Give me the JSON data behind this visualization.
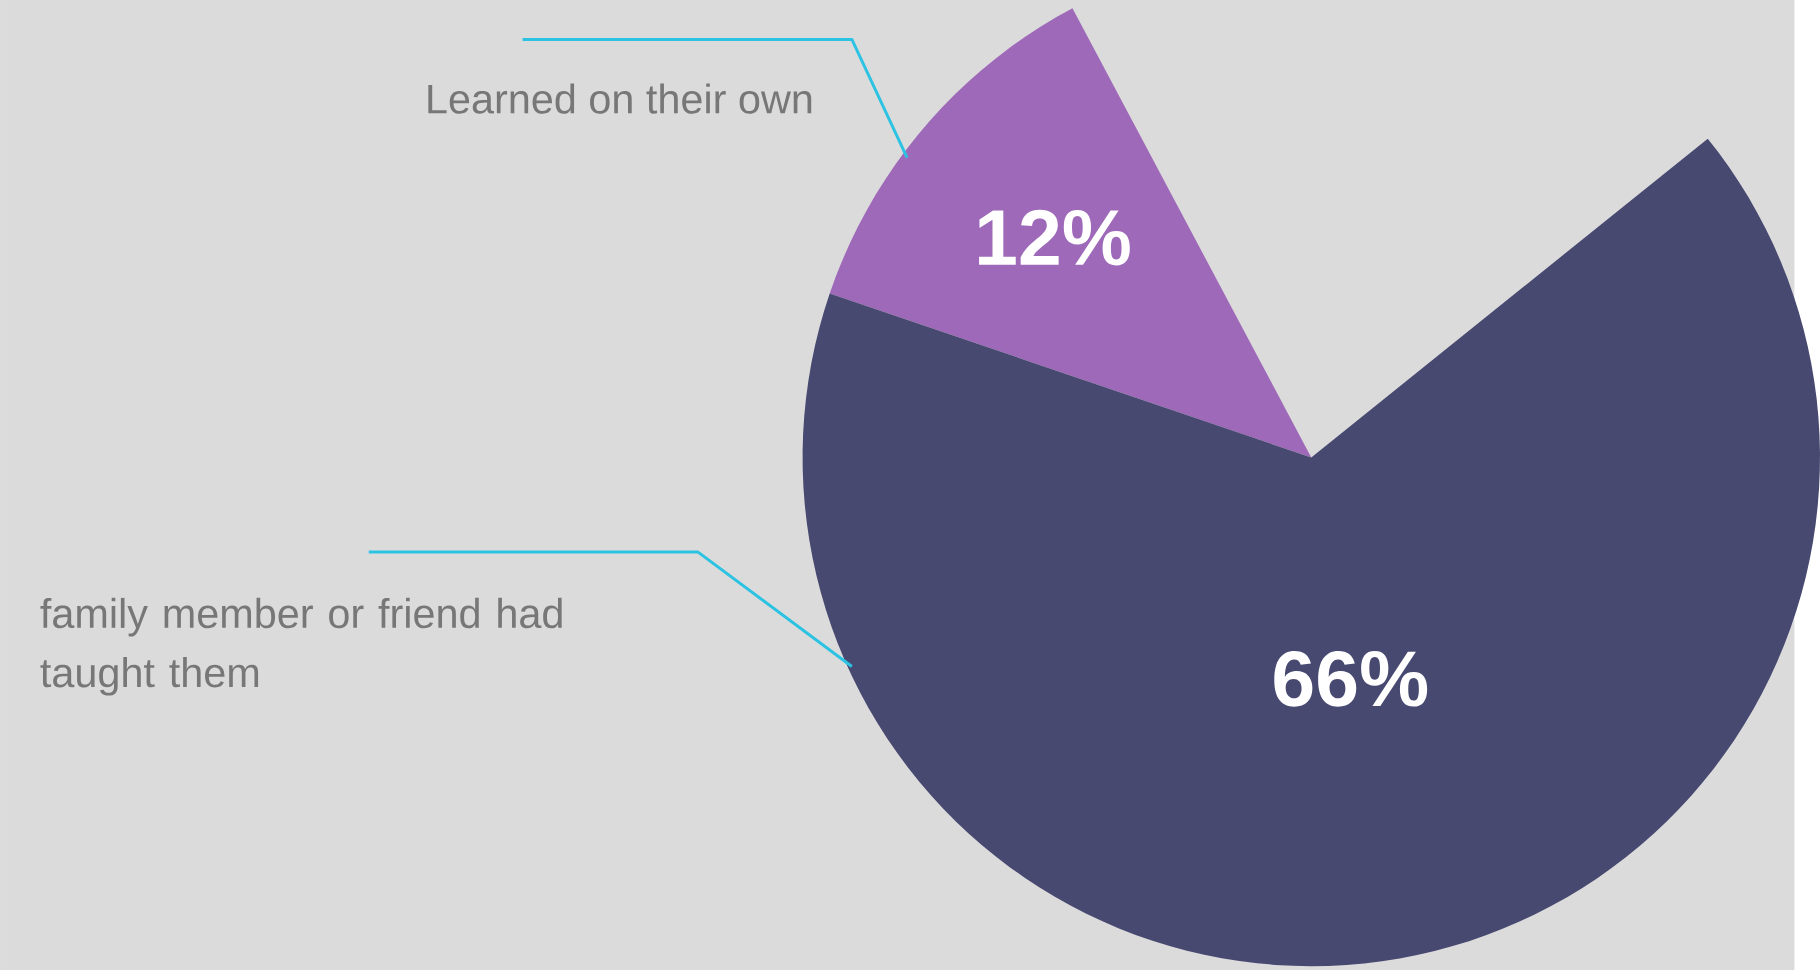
{
  "chart_data": {
    "type": "pie",
    "categories": [
      "Learned on their own",
      "family member or friend had taught them"
    ],
    "values": [
      12,
      66
    ],
    "colors": [
      "#9d69b8",
      "#474970"
    ],
    "value_labels": [
      "12%",
      "66%"
    ]
  }
}
